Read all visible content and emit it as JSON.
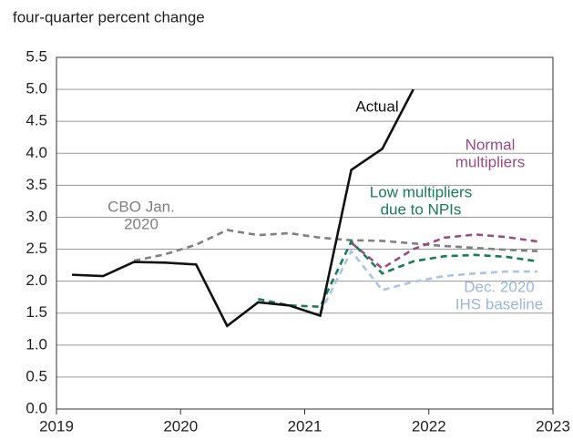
{
  "chart_data": {
    "type": "line",
    "y_label": "four-quarter percent change",
    "x": [
      2019.125,
      2019.375,
      2019.625,
      2019.875,
      2020.125,
      2020.375,
      2020.625,
      2020.875,
      2021.125,
      2021.375,
      2021.625,
      2021.875,
      2022.125,
      2022.375,
      2022.625,
      2022.875
    ],
    "xlim": [
      2019,
      2023
    ],
    "xticks": [
      2019,
      2020,
      2021,
      2022,
      2023
    ],
    "ylim": [
      0,
      5.5
    ],
    "yticks": [
      {
        "value": 0,
        "label": "0.0"
      },
      0.5,
      {
        "value": 1,
        "label": "1.0"
      },
      1.5,
      {
        "value": 2,
        "label": "2.0"
      },
      2.5,
      {
        "value": 3,
        "label": "3.0"
      },
      3.5,
      {
        "value": 4,
        "label": "4.0"
      },
      4.5,
      {
        "value": 5,
        "label": "5.0"
      },
      5.5
    ],
    "grid": true,
    "series": [
      {
        "label": [
          "CBO Jan.",
          "2020"
        ],
        "color": "#808080",
        "dashed": true,
        "values": [
          null,
          null,
          2.32,
          2.42,
          2.57,
          2.8,
          2.72,
          2.75,
          2.68,
          2.64,
          2.63,
          2.59,
          2.55,
          2.52,
          2.49,
          2.47
        ]
      },
      {
        "label": [
          "Normal",
          "multipliers"
        ],
        "color": "#9b4a87",
        "dashed": true,
        "values": [
          null,
          null,
          null,
          null,
          null,
          null,
          null,
          null,
          null,
          2.6,
          2.2,
          2.5,
          2.68,
          2.73,
          2.69,
          2.62
        ]
      },
      {
        "label": [
          "Low multipliers",
          "due to NPIs"
        ],
        "color": "#1a7a5a",
        "dashed": true,
        "values": [
          null,
          null,
          null,
          null,
          null,
          null,
          1.72,
          1.62,
          1.6,
          2.62,
          2.12,
          2.31,
          2.39,
          2.41,
          2.38,
          2.31
        ]
      },
      {
        "label": [
          "Dec. 2020",
          "IHS baseline"
        ],
        "color": "#a9c4e6",
        "dashed": true,
        "values": [
          null,
          null,
          null,
          null,
          null,
          null,
          null,
          null,
          1.5,
          2.47,
          1.86,
          1.99,
          2.08,
          2.12,
          2.15,
          2.15
        ]
      },
      {
        "label": [
          "Actual"
        ],
        "color": "#111111",
        "dashed": false,
        "values": [
          2.1,
          2.08,
          2.3,
          2.29,
          2.26,
          1.3,
          1.67,
          1.62,
          1.46,
          3.74,
          4.07,
          5.0,
          null,
          null,
          null,
          null
        ]
      }
    ]
  }
}
